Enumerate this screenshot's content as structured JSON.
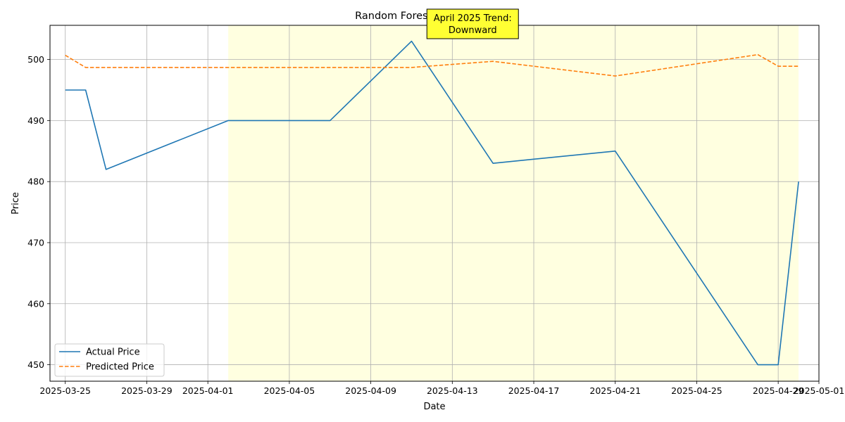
{
  "chart_data": {
    "type": "line",
    "title": "Random Forest Price Prediction",
    "xlabel": "Date",
    "ylabel": "Price",
    "xlim": [
      "2025-03-24T06:00",
      "2025-05-01T00:00"
    ],
    "ylim": [
      447.3,
      505.6
    ],
    "x_ticks": [
      "2025-03-25",
      "2025-03-29",
      "2025-04-01",
      "2025-04-05",
      "2025-04-09",
      "2025-04-13",
      "2025-04-17",
      "2025-04-21",
      "2025-04-25",
      "2025-04-29",
      "2025-05-01"
    ],
    "y_ticks": [
      450,
      460,
      470,
      480,
      490,
      500
    ],
    "grid": true,
    "legend_position": "lower-left",
    "highlight_region": {
      "from": "2025-04-02",
      "to": "2025-04-30",
      "color": "#ffffe0"
    },
    "annotation": {
      "lines": [
        "April 2025 Trend:",
        "Downward"
      ],
      "box_color": "#ffff33",
      "at": "2025-04-14"
    },
    "series": [
      {
        "name": "Actual Price",
        "color": "#1f77b4",
        "style": "solid",
        "points": [
          [
            "2025-03-25",
            495
          ],
          [
            "2025-03-26",
            495
          ],
          [
            "2025-03-27",
            482
          ],
          [
            "2025-04-02",
            490
          ],
          [
            "2025-04-03",
            490
          ],
          [
            "2025-04-07",
            490
          ],
          [
            "2025-04-11",
            503
          ],
          [
            "2025-04-15",
            483
          ],
          [
            "2025-04-21",
            485
          ],
          [
            "2025-04-28",
            450
          ],
          [
            "2025-04-29",
            450
          ],
          [
            "2025-04-30",
            480
          ]
        ]
      },
      {
        "name": "Predicted Price",
        "color": "#ff7f0e",
        "style": "dashed",
        "points": [
          [
            "2025-03-25",
            500.7
          ],
          [
            "2025-03-26",
            498.7
          ],
          [
            "2025-03-27",
            498.7
          ],
          [
            "2025-04-02",
            498.7
          ],
          [
            "2025-04-03",
            498.7
          ],
          [
            "2025-04-07",
            498.7
          ],
          [
            "2025-04-11",
            498.7
          ],
          [
            "2025-04-15",
            499.7
          ],
          [
            "2025-04-21",
            497.3
          ],
          [
            "2025-04-28",
            500.8
          ],
          [
            "2025-04-29",
            498.9
          ],
          [
            "2025-04-30",
            498.9
          ]
        ]
      }
    ]
  }
}
